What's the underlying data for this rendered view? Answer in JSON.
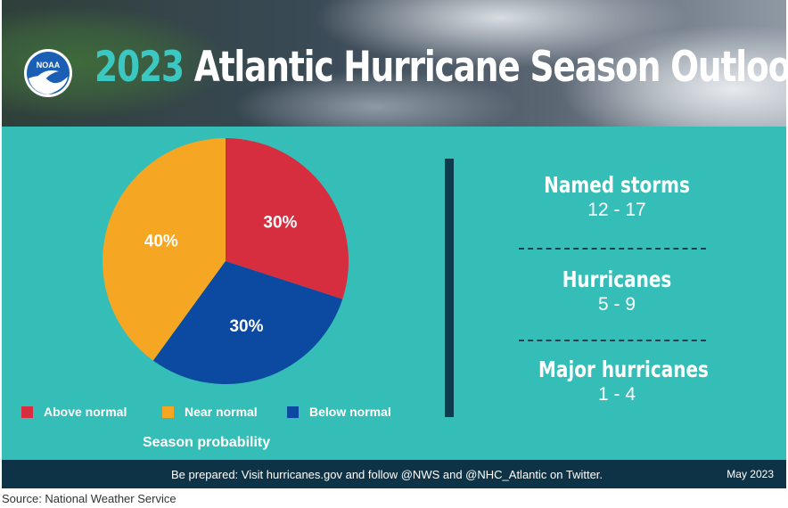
{
  "header": {
    "logo_text": "NOAA",
    "title_year": "2023",
    "title_rest": "Atlantic Hurricane Season Outlook"
  },
  "chart_data": {
    "type": "pie",
    "slices": [
      {
        "name": "Near normal",
        "value": 40,
        "label": "40%",
        "color": "#f5a623"
      },
      {
        "name": "Above normal",
        "value": 30,
        "label": "30%",
        "color": "#d62e3e"
      },
      {
        "name": "Below normal",
        "value": 30,
        "label": "30%",
        "color": "#0b4aa0"
      }
    ],
    "legend": [
      {
        "name": "Above normal",
        "color": "#d62e3e"
      },
      {
        "name": "Near normal",
        "color": "#f5a623"
      },
      {
        "name": "Below normal",
        "color": "#0b4aa0"
      }
    ],
    "legend_position": "bottom",
    "xlabel": "Season probability"
  },
  "stats": [
    {
      "label": "Named storms",
      "value": "12 - 17"
    },
    {
      "label": "Hurricanes",
      "value": "5 - 9"
    },
    {
      "label": "Major hurricanes",
      "value": "1 - 4"
    }
  ],
  "footer": {
    "text": "Be prepared: Visit hurricanes.gov and follow @NWS and @NHC_Atlantic on Twitter.",
    "date": "May 2023"
  },
  "source": "Source: National Weather Service",
  "colors": {
    "background": "#35bdb8",
    "accent_year": "#3bc8c2",
    "divider": "#0e3b4f",
    "footer": "#0e3346"
  }
}
